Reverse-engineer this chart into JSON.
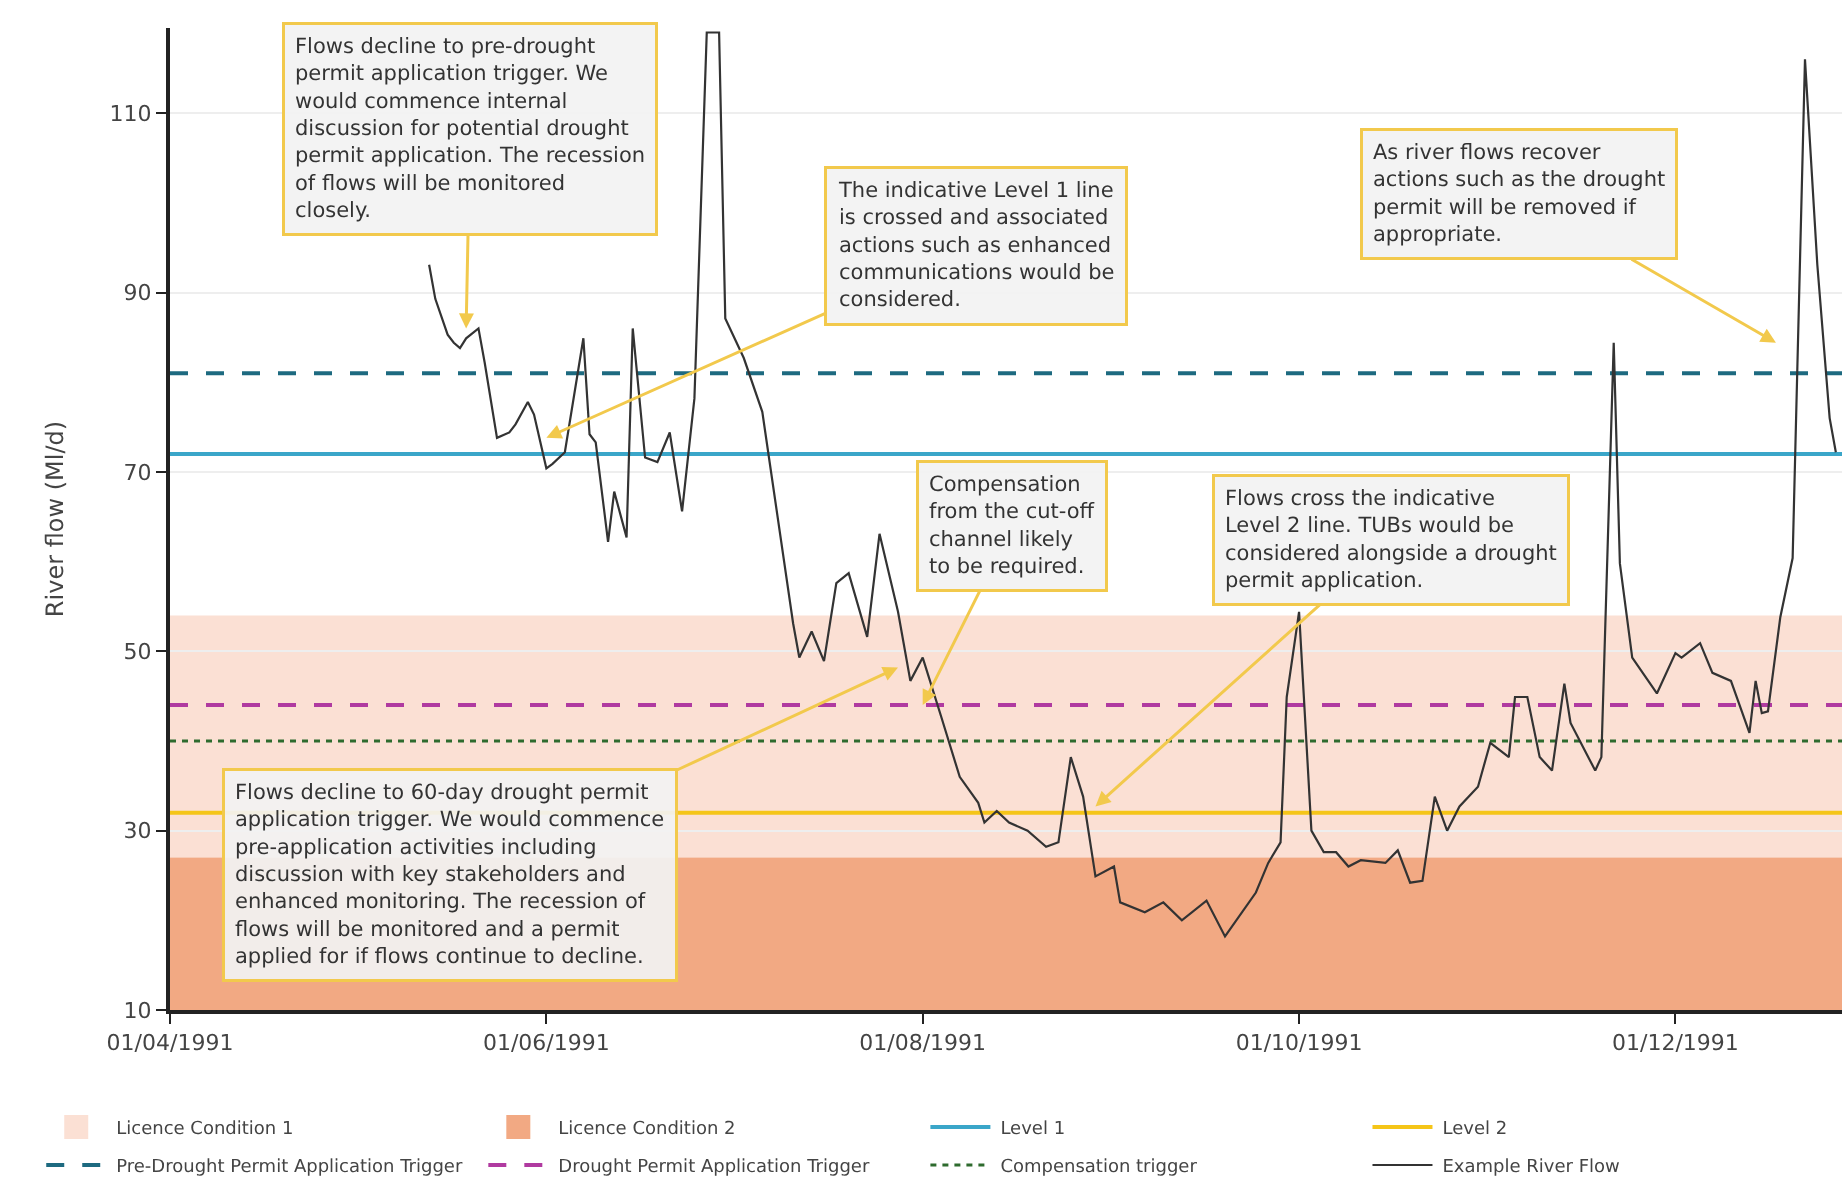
{
  "chart_data": {
    "type": "line",
    "ylabel": "River flow (Ml/d)",
    "xlim": [
      "1991-04-01",
      "1991-12-28"
    ],
    "xticks": [
      {
        "value": "1991-04-01",
        "label": "01/04/1991"
      },
      {
        "value": "1991-06-01",
        "label": "01/06/1991"
      },
      {
        "value": "1991-08-01",
        "label": "01/08/1991"
      },
      {
        "value": "1991-10-01",
        "label": "01/10/1991"
      },
      {
        "value": "1991-12-01",
        "label": "01/12/1991"
      }
    ],
    "ylim": [
      10,
      119.5
    ],
    "yticks": [
      10,
      30,
      50,
      70,
      90,
      110
    ],
    "grid": "y",
    "legend": "bottom",
    "bands": [
      {
        "axis": "y",
        "from": 27,
        "to": 54,
        "label": "Licence Condition 1",
        "color": "#fbe0d4"
      },
      {
        "axis": "y",
        "from": 10,
        "to": 27,
        "label": "Licence Condition 2",
        "color": "#f2a983"
      }
    ],
    "ref_lines": [
      {
        "axis": "y",
        "value": 72,
        "label": "Level 1",
        "color": "#3aa6c9",
        "line_style": "solid"
      },
      {
        "axis": "y",
        "value": 32,
        "label": "Level 2",
        "color": "#f5c518",
        "line_style": "solid"
      },
      {
        "axis": "y",
        "value": 81,
        "label": "Pre-Drought Permit Application Trigger",
        "color": "#1d6a80",
        "line_style": "dashed"
      },
      {
        "axis": "y",
        "value": 44,
        "label": "Drought Permit Application Trigger",
        "color": "#b03aa0",
        "line_style": "dashed"
      },
      {
        "axis": "y",
        "value": 40,
        "label": "Compensation trigger",
        "color": "#2e6b2e",
        "line_style": "dotted"
      }
    ],
    "series": [
      {
        "name": "Example River Flow",
        "color": "#333333",
        "line_style": "solid",
        "marker": "none",
        "x": [
          "1991-05-13",
          "1991-05-14",
          "1991-05-16",
          "1991-05-17",
          "1991-05-18",
          "1991-05-19",
          "1991-05-21",
          "1991-05-22",
          "1991-05-24",
          "1991-05-26",
          "1991-05-27",
          "1991-05-29",
          "1991-05-30",
          "1991-06-01",
          "1991-06-02",
          "1991-06-04",
          "1991-06-07",
          "1991-06-08",
          "1991-06-09",
          "1991-06-11",
          "1991-06-12",
          "1991-06-14",
          "1991-06-15",
          "1991-06-17",
          "1991-06-19",
          "1991-06-21",
          "1991-06-23",
          "1991-06-25",
          "1991-06-27",
          "1991-06-29",
          "1991-06-30",
          "1991-07-03",
          "1991-07-06",
          "1991-07-11",
          "1991-07-12",
          "1991-07-14",
          "1991-07-16",
          "1991-07-18",
          "1991-07-20",
          "1991-07-23",
          "1991-07-25",
          "1991-07-28",
          "1991-07-30",
          "1991-08-01",
          "1991-08-04",
          "1991-08-07",
          "1991-08-10",
          "1991-08-11",
          "1991-08-13",
          "1991-08-15",
          "1991-08-18",
          "1991-08-21",
          "1991-08-23",
          "1991-08-25",
          "1991-08-27",
          "1991-08-29",
          "1991-09-01",
          "1991-09-02",
          "1991-09-06",
          "1991-09-09",
          "1991-09-12",
          "1991-09-16",
          "1991-09-19",
          "1991-09-24",
          "1991-09-26",
          "1991-09-28",
          "1991-09-29",
          "1991-10-01",
          "1991-10-03",
          "1991-10-05",
          "1991-10-07",
          "1991-10-09",
          "1991-10-11",
          "1991-10-15",
          "1991-10-17",
          "1991-10-19",
          "1991-10-21",
          "1991-10-23",
          "1991-10-25",
          "1991-10-27",
          "1991-10-30",
          "1991-11-01",
          "1991-11-04",
          "1991-11-05",
          "1991-11-07",
          "1991-11-09",
          "1991-11-11",
          "1991-11-13",
          "1991-11-14",
          "1991-11-18",
          "1991-11-19",
          "1991-11-21",
          "1991-11-22",
          "1991-11-24",
          "1991-11-28",
          "1991-12-01",
          "1991-12-02",
          "1991-12-05",
          "1991-12-07",
          "1991-12-10",
          "1991-12-13",
          "1991-12-14",
          "1991-12-15",
          "1991-12-16",
          "1991-12-18",
          "1991-12-20",
          "1991-12-22",
          "1991-12-24",
          "1991-12-26",
          "1991-12-27"
        ],
        "values": [
          93.1,
          89.3,
          85.3,
          84.4,
          83.8,
          84.9,
          86,
          82.2,
          73.8,
          74.4,
          75.3,
          77.8,
          76.4,
          70.4,
          70.9,
          72.2,
          84.9,
          74.2,
          73.3,
          62.2,
          67.8,
          62.7,
          86,
          71.6,
          71.1,
          74.4,
          65.6,
          78.2,
          119,
          119,
          87.1,
          82.7,
          76.7,
          53.1,
          49.3,
          52.2,
          48.9,
          57.6,
          58.7,
          51.6,
          63.1,
          54.4,
          46.7,
          49.3,
          42.7,
          36,
          33.1,
          30.9,
          32.2,
          30.9,
          30,
          28.2,
          28.7,
          38.2,
          33.8,
          24.9,
          26,
          22,
          20.9,
          22,
          20,
          22.2,
          18.2,
          23.1,
          26.4,
          28.7,
          44.9,
          54.4,
          30,
          27.6,
          27.6,
          26,
          26.7,
          26.4,
          27.8,
          24.2,
          24.4,
          33.8,
          30,
          32.7,
          34.9,
          39.8,
          38.2,
          44.9,
          44.9,
          38.2,
          36.7,
          46.4,
          42,
          36.7,
          38.2,
          84.4,
          59.8,
          49.3,
          45.3,
          49.8,
          49.3,
          50.9,
          47.6,
          46.7,
          40.9,
          46.7,
          43.1,
          43.3,
          53.8,
          60.4,
          116,
          93.1,
          76,
          72.2
        ]
      }
    ],
    "annotations": [
      {
        "text": "Flows decline to pre-drought permit application trigger. We would commence internal discussion for potential drought permit application. The recession of flows will be monitored closely.",
        "x": "1991-05-19",
        "y": 86
      },
      {
        "text": "The indicative Level 1 line is crossed and associated actions such as enhanced communications would be considered.",
        "x": "1991-06-01",
        "y": 73.8
      },
      {
        "text": "Flows decline to 60-day drought permit application trigger. We would commence pre-application activities including discussion with key stakeholders and enhanced monitoring. The recession of flows will be monitored and a permit applied for if flows continue to decline.",
        "x": "1991-07-28",
        "y": 48.2
      },
      {
        "text": "Compensation from the cut-off channel likely to be required.",
        "x": "1991-08-01",
        "y": 44
      },
      {
        "text": "Flows cross the indicative Level 2 line. TUBs would be considered alongside a drought permit application.",
        "x": "1991-08-29",
        "y": 32.7
      },
      "As river flows recover actions such as the drought permit will be removed if appropriate."
    ]
  }
}
